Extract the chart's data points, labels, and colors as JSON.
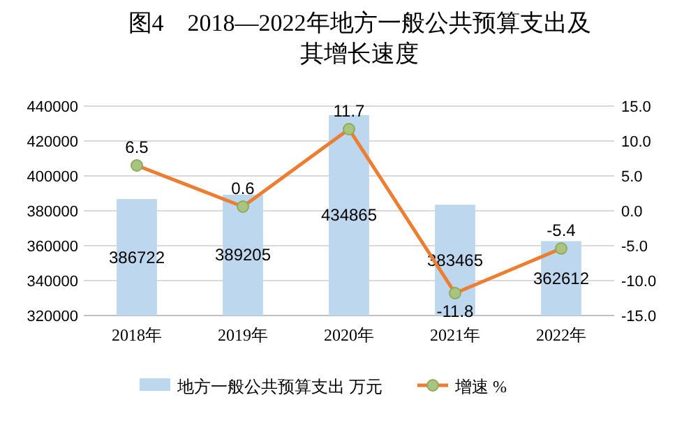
{
  "chart_data": {
    "type": "bar",
    "title": "图4　2018—2022年地方一般公共预算支出及其增长速度",
    "categories": [
      "2018年",
      "2019年",
      "2020年",
      "2021年",
      "2022年"
    ],
    "series": [
      {
        "name": "地方一般公共预算支出 万元",
        "color": "#bdd7ee",
        "values": [
          386722,
          389205,
          434865,
          383465,
          362612
        ]
      },
      {
        "name": "增速 %",
        "type": "line",
        "axis": "y2",
        "color": "#ed7d31",
        "values": [
          6.5,
          0.6,
          11.7,
          -11.8,
          -5.4
        ]
      }
    ],
    "ylim": [
      320000,
      440000
    ],
    "yticks": [
      320000,
      340000,
      360000,
      380000,
      400000,
      420000,
      440000
    ],
    "y2lim": [
      -15,
      15
    ],
    "y2ticks": [
      {
        "value": -15,
        "label": "-15.0"
      },
      {
        "value": -10,
        "label": "-10.0"
      },
      {
        "value": -5,
        "label": "-5.0"
      },
      {
        "value": 0,
        "label": "0.0"
      },
      {
        "value": 5,
        "label": "5.0"
      },
      {
        "value": 10,
        "label": "10.0"
      },
      {
        "value": 15,
        "label": "15.0"
      }
    ],
    "data_labels": true,
    "grid": "y",
    "legend": "bottom",
    "marker": "circle",
    "line_style": "solid"
  }
}
